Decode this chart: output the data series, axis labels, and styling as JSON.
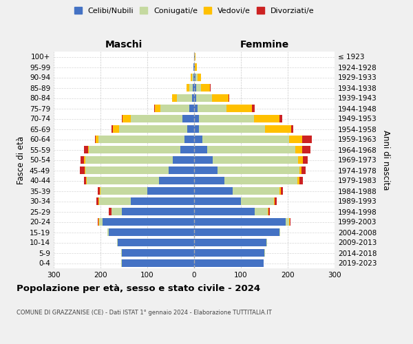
{
  "age_groups": [
    "0-4",
    "5-9",
    "10-14",
    "15-19",
    "20-24",
    "25-29",
    "30-34",
    "35-39",
    "40-44",
    "45-49",
    "50-54",
    "55-59",
    "60-64",
    "65-69",
    "70-74",
    "75-79",
    "80-84",
    "85-89",
    "90-94",
    "95-99",
    "100+"
  ],
  "birth_years": [
    "2019-2023",
    "2014-2018",
    "2009-2013",
    "2004-2008",
    "1999-2003",
    "1994-1998",
    "1989-1993",
    "1984-1988",
    "1979-1983",
    "1974-1978",
    "1969-1973",
    "1964-1968",
    "1959-1963",
    "1954-1958",
    "1949-1953",
    "1944-1948",
    "1939-1943",
    "1934-1938",
    "1929-1933",
    "1924-1928",
    "≤ 1923"
  ],
  "colors": {
    "celibi": "#4472c4",
    "coniugati": "#c5d9a0",
    "vedovi": "#ffc000",
    "divorziati": "#cc2222"
  },
  "maschi": {
    "celibi": [
      155,
      155,
      163,
      183,
      195,
      155,
      135,
      100,
      75,
      55,
      45,
      30,
      20,
      15,
      25,
      10,
      5,
      3,
      2,
      1,
      0
    ],
    "coniugati": [
      1,
      1,
      1,
      2,
      8,
      22,
      68,
      100,
      155,
      178,
      188,
      195,
      185,
      145,
      110,
      62,
      32,
      8,
      3,
      1,
      0
    ],
    "vedovi": [
      0,
      0,
      0,
      0,
      1,
      0,
      1,
      1,
      1,
      1,
      2,
      2,
      5,
      14,
      18,
      12,
      10,
      5,
      2,
      0,
      0
    ],
    "divorziati": [
      0,
      0,
      0,
      0,
      2,
      5,
      5,
      5,
      5,
      10,
      8,
      8,
      2,
      2,
      2,
      2,
      0,
      0,
      0,
      0,
      0
    ]
  },
  "femmine": {
    "celibi": [
      148,
      150,
      155,
      182,
      195,
      130,
      100,
      82,
      65,
      50,
      40,
      28,
      18,
      10,
      10,
      7,
      5,
      4,
      3,
      2,
      1
    ],
    "coniugati": [
      1,
      1,
      1,
      2,
      8,
      28,
      70,
      100,
      155,
      175,
      182,
      188,
      185,
      142,
      118,
      62,
      33,
      10,
      4,
      0,
      0
    ],
    "vedovi": [
      0,
      0,
      0,
      0,
      1,
      1,
      2,
      3,
      5,
      5,
      10,
      15,
      28,
      55,
      55,
      55,
      35,
      20,
      8,
      4,
      2
    ],
    "divorziati": [
      0,
      0,
      0,
      0,
      2,
      3,
      5,
      5,
      8,
      8,
      10,
      18,
      20,
      5,
      5,
      5,
      2,
      1,
      0,
      0,
      0
    ]
  },
  "xlim": 300,
  "title": "Popolazione per età, sesso e stato civile - 2024",
  "subtitle": "COMUNE DI GRAZZANISE (CE) - Dati ISTAT 1° gennaio 2024 - Elaborazione TUTTITALIA.IT",
  "xlabel_left": "Maschi",
  "xlabel_right": "Femmine",
  "ylabel_left": "Fasce di età",
  "ylabel_right": "Anni di nascita",
  "bg_color": "#f0f0f0",
  "plot_bg_color": "#ffffff"
}
